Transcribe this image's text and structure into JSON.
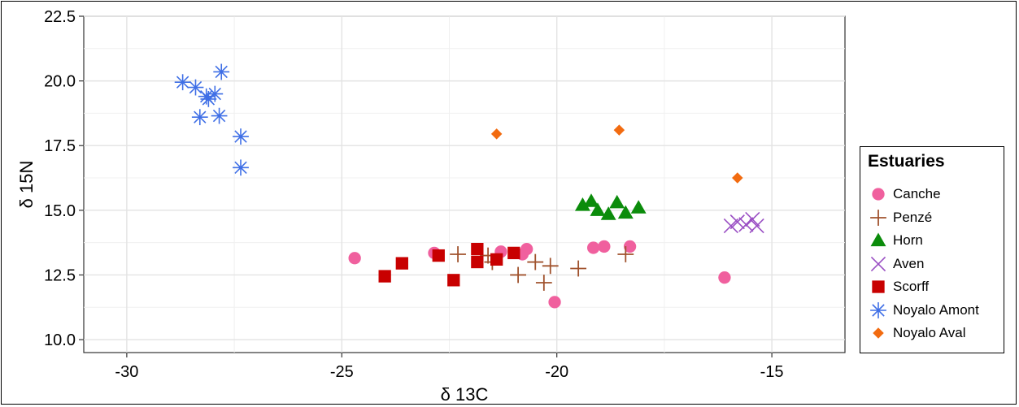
{
  "chart_data": {
    "type": "scatter",
    "xlabel": "δ 13C",
    "ylabel": "δ 15N",
    "xlim": [
      -31,
      -13.3
    ],
    "ylim": [
      9.5,
      22.5
    ],
    "xticks": [
      -30,
      -25,
      -20,
      -15
    ],
    "xtick_labels": [
      "-30",
      "-25",
      "-20",
      "-15"
    ],
    "yticks": [
      10.0,
      12.5,
      15.0,
      17.5,
      20.0,
      22.5
    ],
    "ytick_labels": [
      "10.0",
      "12.5",
      "15.0",
      "17.5",
      "20.0",
      "22.5"
    ],
    "grid": true,
    "legend": {
      "title": "Estuaries",
      "placement": "right"
    },
    "series": [
      {
        "name": "Canche",
        "marker": "circle",
        "color": "#f0609e",
        "points": [
          [
            -24.7,
            13.15
          ],
          [
            -22.85,
            13.35
          ],
          [
            -21.3,
            13.4
          ],
          [
            -20.8,
            13.3
          ],
          [
            -20.7,
            13.5
          ],
          [
            -20.05,
            11.45
          ],
          [
            -19.15,
            13.55
          ],
          [
            -18.9,
            13.6
          ],
          [
            -18.3,
            13.6
          ],
          [
            -16.1,
            12.4
          ]
        ]
      },
      {
        "name": "Penzé",
        "marker": "plus",
        "color": "#a0522d",
        "points": [
          [
            -22.3,
            13.3
          ],
          [
            -21.6,
            13.25
          ],
          [
            -21.5,
            13.0
          ],
          [
            -20.9,
            12.5
          ],
          [
            -20.5,
            13.0
          ],
          [
            -20.3,
            12.2
          ],
          [
            -20.15,
            12.85
          ],
          [
            -19.5,
            12.75
          ],
          [
            -18.4,
            13.3
          ]
        ]
      },
      {
        "name": "Horn",
        "marker": "triangle",
        "color": "#0b8c0b",
        "points": [
          [
            -19.4,
            15.2
          ],
          [
            -19.2,
            15.35
          ],
          [
            -19.05,
            15.0
          ],
          [
            -18.8,
            14.85
          ],
          [
            -18.6,
            15.3
          ],
          [
            -18.4,
            14.9
          ],
          [
            -18.1,
            15.1
          ]
        ]
      },
      {
        "name": "Aven",
        "marker": "x",
        "color": "#9a4fc4",
        "points": [
          [
            -15.95,
            14.4
          ],
          [
            -15.8,
            14.55
          ],
          [
            -15.6,
            14.45
          ],
          [
            -15.45,
            14.65
          ],
          [
            -15.35,
            14.4
          ]
        ]
      },
      {
        "name": "Scorff",
        "marker": "square",
        "color": "#c80000",
        "points": [
          [
            -24.0,
            12.45
          ],
          [
            -23.6,
            12.95
          ],
          [
            -22.75,
            13.25
          ],
          [
            -22.4,
            12.3
          ],
          [
            -21.85,
            13.5
          ],
          [
            -21.85,
            13.0
          ],
          [
            -21.4,
            13.1
          ],
          [
            -21.0,
            13.35
          ]
        ]
      },
      {
        "name": "Noyalo Amont",
        "marker": "asterisk",
        "color": "#3f6fe6",
        "points": [
          [
            -28.7,
            19.95
          ],
          [
            -28.4,
            19.75
          ],
          [
            -28.15,
            19.4
          ],
          [
            -28.1,
            19.3
          ],
          [
            -27.95,
            19.5
          ],
          [
            -27.8,
            20.35
          ],
          [
            -28.3,
            18.6
          ],
          [
            -27.85,
            18.65
          ],
          [
            -27.35,
            17.85
          ],
          [
            -27.35,
            16.65
          ]
        ]
      },
      {
        "name": "Noyalo Aval",
        "marker": "diamond",
        "color": "#f26b10",
        "points": [
          [
            -21.4,
            17.95
          ],
          [
            -18.55,
            18.1
          ],
          [
            -15.8,
            16.25
          ]
        ]
      }
    ]
  }
}
